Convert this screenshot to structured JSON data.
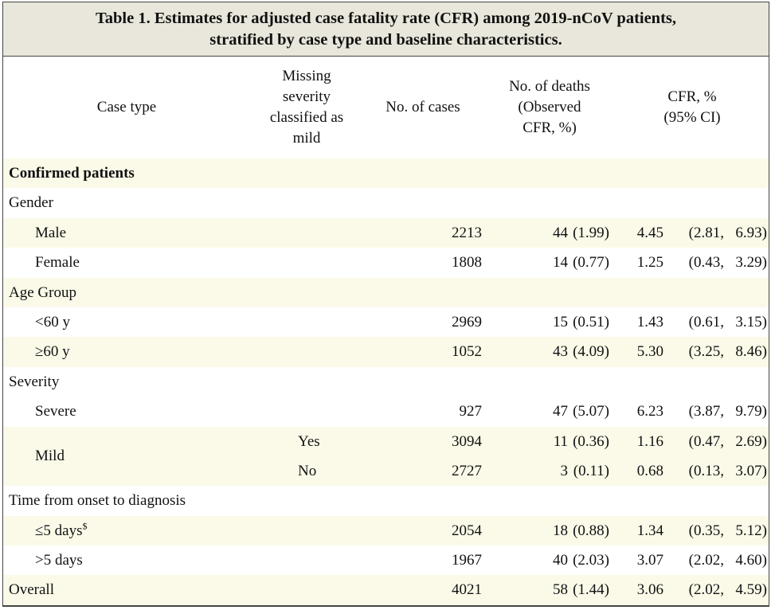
{
  "caption": {
    "line1": "Table 1. Estimates for adjusted case fatality rate (CFR) among 2019-nCoV patients,",
    "line2": "stratified by case type and baseline characteristics."
  },
  "header": {
    "case_type": "Case type",
    "missing": "Missing\nseverity\nclassified as\nmild",
    "cases": "No. of cases",
    "deaths": "No. of deaths\n(Observed\nCFR, %)",
    "cfr": "CFR, %\n(95% CI)"
  },
  "sections": {
    "confirmed": "Confirmed patients",
    "gender": "Gender",
    "age": "Age Group",
    "severity": "Severity",
    "time": "Time from onset to diagnosis"
  },
  "rows": {
    "male": {
      "label": "Male",
      "cases": "2213",
      "deaths": "44",
      "obs": "(1.99)",
      "cfr": "4.45",
      "lo": "(2.81,",
      "hi": "6.93)"
    },
    "female": {
      "label": "Female",
      "cases": "1808",
      "deaths": "14",
      "obs": "(0.77)",
      "cfr": "1.25",
      "lo": "(0.43,",
      "hi": "3.29)"
    },
    "lt60": {
      "label": "<60 y",
      "cases": "2969",
      "deaths": "15",
      "obs": "(0.51)",
      "cfr": "1.43",
      "lo": "(0.61,",
      "hi": "3.15)"
    },
    "ge60": {
      "label": "≥60 y",
      "cases": "1052",
      "deaths": "43",
      "obs": "(4.09)",
      "cfr": "5.30",
      "lo": "(3.25,",
      "hi": "8.46)"
    },
    "severe": {
      "label": "Severe",
      "cases": "927",
      "deaths": "47",
      "obs": "(5.07)",
      "cfr": "6.23",
      "lo": "(3.87,",
      "hi": "9.79)"
    },
    "mild": {
      "label": "Mild"
    },
    "mild_yes": {
      "missing": "Yes",
      "cases": "3094",
      "deaths": "11",
      "obs": "(0.36)",
      "cfr": "1.16",
      "lo": "(0.47,",
      "hi": "2.69)"
    },
    "mild_no": {
      "missing": "No",
      "cases": "2727",
      "deaths": "3",
      "obs": "(0.11)",
      "cfr": "0.68",
      "lo": "(0.13,",
      "hi": "3.07)"
    },
    "le5": {
      "label": "≤5 days",
      "sup": "$",
      "cases": "2054",
      "deaths": "18",
      "obs": "(0.88)",
      "cfr": "1.34",
      "lo": "(0.35,",
      "hi": "5.12)"
    },
    "gt5": {
      "label": ">5 days",
      "cases": "1967",
      "deaths": "40",
      "obs": "(2.03)",
      "cfr": "3.07",
      "lo": "(2.02,",
      "hi": "4.60)"
    },
    "overall": {
      "label": "Overall",
      "cases": "4021",
      "deaths": "58",
      "obs": "(1.44)",
      "cfr": "3.06",
      "lo": "(2.02,",
      "hi": "4.59)"
    }
  }
}
